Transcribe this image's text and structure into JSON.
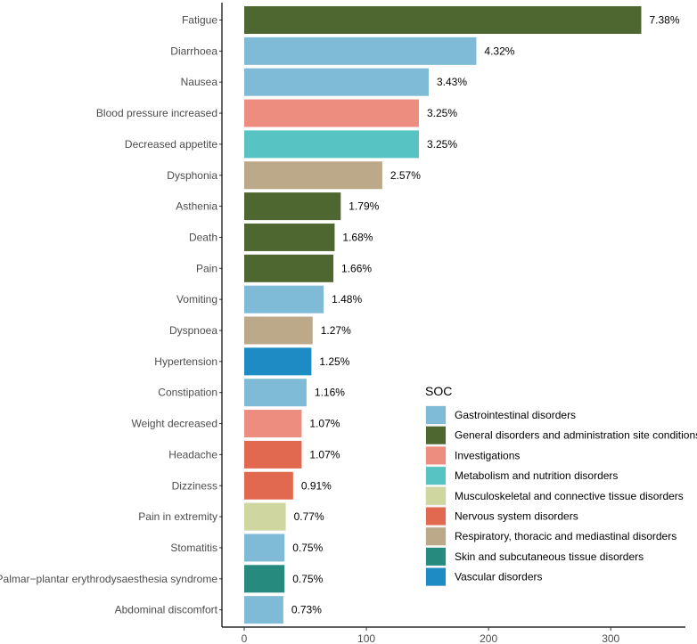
{
  "chart_data": {
    "type": "bar",
    "orientation": "horizontal",
    "title": "",
    "xlabel": "",
    "ylabel": "",
    "xlim": [
      0,
      340
    ],
    "xticks": [
      0,
      100,
      200,
      300
    ],
    "grid": false,
    "categories": [
      "Fatigue",
      "Diarrhoea",
      "Nausea",
      "Blood pressure increased",
      "Decreased appetite",
      "Dysphonia",
      "Asthenia",
      "Death",
      "Pain",
      "Vomiting",
      "Dyspnoea",
      "Hypertension",
      "Constipation",
      "Weight decreased",
      "Headache",
      "Dizziness",
      "Pain in extremity",
      "Stomatitis",
      "Palmar−plantar erythrodysaesthesia syndrome",
      "Abdominal discomfort"
    ],
    "values": [
      325,
      190,
      151,
      143,
      143,
      113,
      79,
      74,
      73,
      65,
      56,
      55,
      51,
      47,
      47,
      40,
      34,
      33,
      33,
      32
    ],
    "data_labels": [
      "7.38%",
      "4.32%",
      "3.43%",
      "3.25%",
      "3.25%",
      "2.57%",
      "1.79%",
      "1.68%",
      "1.66%",
      "1.48%",
      "1.27%",
      "1.25%",
      "1.16%",
      "1.07%",
      "1.07%",
      "0.91%",
      "0.77%",
      "0.75%",
      "0.75%",
      "0.73%"
    ],
    "groups": [
      "General disorders and administration site conditions",
      "Gastrointestinal disorders",
      "Gastrointestinal disorders",
      "Investigations",
      "Metabolism and nutrition disorders",
      "Respiratory, thoracic and mediastinal disorders",
      "General disorders and administration site conditions",
      "General disorders and administration site conditions",
      "General disorders and administration site conditions",
      "Gastrointestinal disorders",
      "Respiratory, thoracic and mediastinal disorders",
      "Vascular disorders",
      "Gastrointestinal disorders",
      "Investigations",
      "Nervous system disorders",
      "Nervous system disorders",
      "Musculoskeletal and connective tissue disorders",
      "Gastrointestinal disorders",
      "Skin and subcutaneous tissue disorders",
      "Gastrointestinal disorders"
    ],
    "legend": {
      "title": "SOC",
      "position": "right",
      "entries": [
        {
          "name": "Gastrointestinal disorders",
          "color": "#7fbad6"
        },
        {
          "name": "General disorders and administration site conditions",
          "color": "#4e6630"
        },
        {
          "name": "Investigations",
          "color": "#ed8d80"
        },
        {
          "name": "Metabolism and nutrition disorders",
          "color": "#58c3c3"
        },
        {
          "name": "Musculoskeletal and connective tissue disorders",
          "color": "#d0d6a0"
        },
        {
          "name": "Nervous system disorders",
          "color": "#e0694f"
        },
        {
          "name": "Respiratory, thoracic and mediastinal disorders",
          "color": "#bba98a"
        },
        {
          "name": "Skin and subcutaneous tissue disorders",
          "color": "#268a7f"
        },
        {
          "name": "Vascular disorders",
          "color": "#1f8bc4"
        }
      ]
    }
  }
}
